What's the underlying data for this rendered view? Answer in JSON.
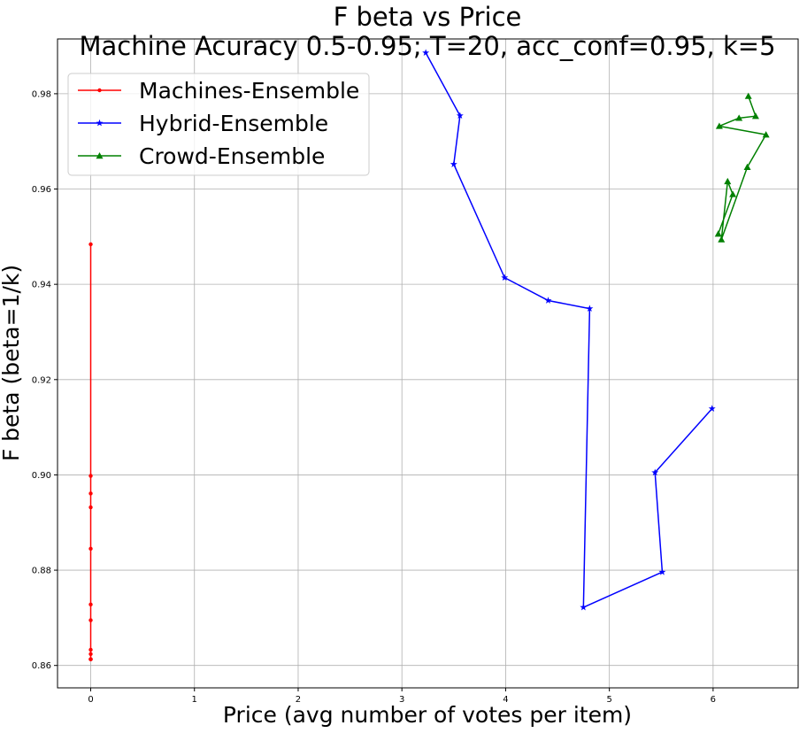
{
  "chart_data": {
    "type": "line",
    "title": "F beta vs Price",
    "subtitle": "Machine Acuracy 0.5-0.95; T=20, acc_conf=0.95, k=5",
    "xlabel": "Price (avg number of votes per item)",
    "ylabel": "F beta (beta=1/k)",
    "xlim": [
      -0.32,
      6.82
    ],
    "ylim": [
      0.8553,
      0.9915
    ],
    "xticks": [
      "0",
      "1",
      "2",
      "3",
      "4",
      "5",
      "6"
    ],
    "yticks": [
      "0.86",
      "0.88",
      "0.90",
      "0.92",
      "0.94",
      "0.96",
      "0.98"
    ],
    "grid": true,
    "legend_position": "top-left",
    "series": [
      {
        "name": "Machines-Ensemble",
        "color": "#ff0000",
        "marker": "point",
        "x": [
          0,
          0,
          0,
          0,
          0,
          0,
          0,
          0,
          0,
          0,
          0,
          0
        ],
        "y": [
          0.9484,
          0.8998,
          0.8961,
          0.8932,
          0.8845,
          0.8728,
          0.8695,
          0.8633,
          0.8624,
          0.8613,
          0.8613,
          0.8613
        ]
      },
      {
        "name": "Hybrid-Ensemble",
        "color": "#0000ff",
        "marker": "star",
        "x": [
          3.23,
          3.56,
          3.5,
          3.99,
          4.41,
          4.81,
          4.75,
          5.51,
          5.44,
          5.99
        ],
        "y": [
          0.9886,
          0.9754,
          0.9652,
          0.9414,
          0.9366,
          0.9349,
          0.8722,
          0.8796,
          0.9005,
          0.9139
        ]
      },
      {
        "name": "Crowd-Ensemble",
        "color": "#008000",
        "marker": "triangle",
        "x": [
          6.34,
          6.41,
          6.25,
          6.06,
          6.51,
          6.33,
          6.08,
          6.14,
          6.19,
          6.05
        ],
        "y": [
          0.9795,
          0.9753,
          0.9749,
          0.9732,
          0.9714,
          0.9646,
          0.9494,
          0.9616,
          0.9589,
          0.9506
        ]
      }
    ]
  }
}
